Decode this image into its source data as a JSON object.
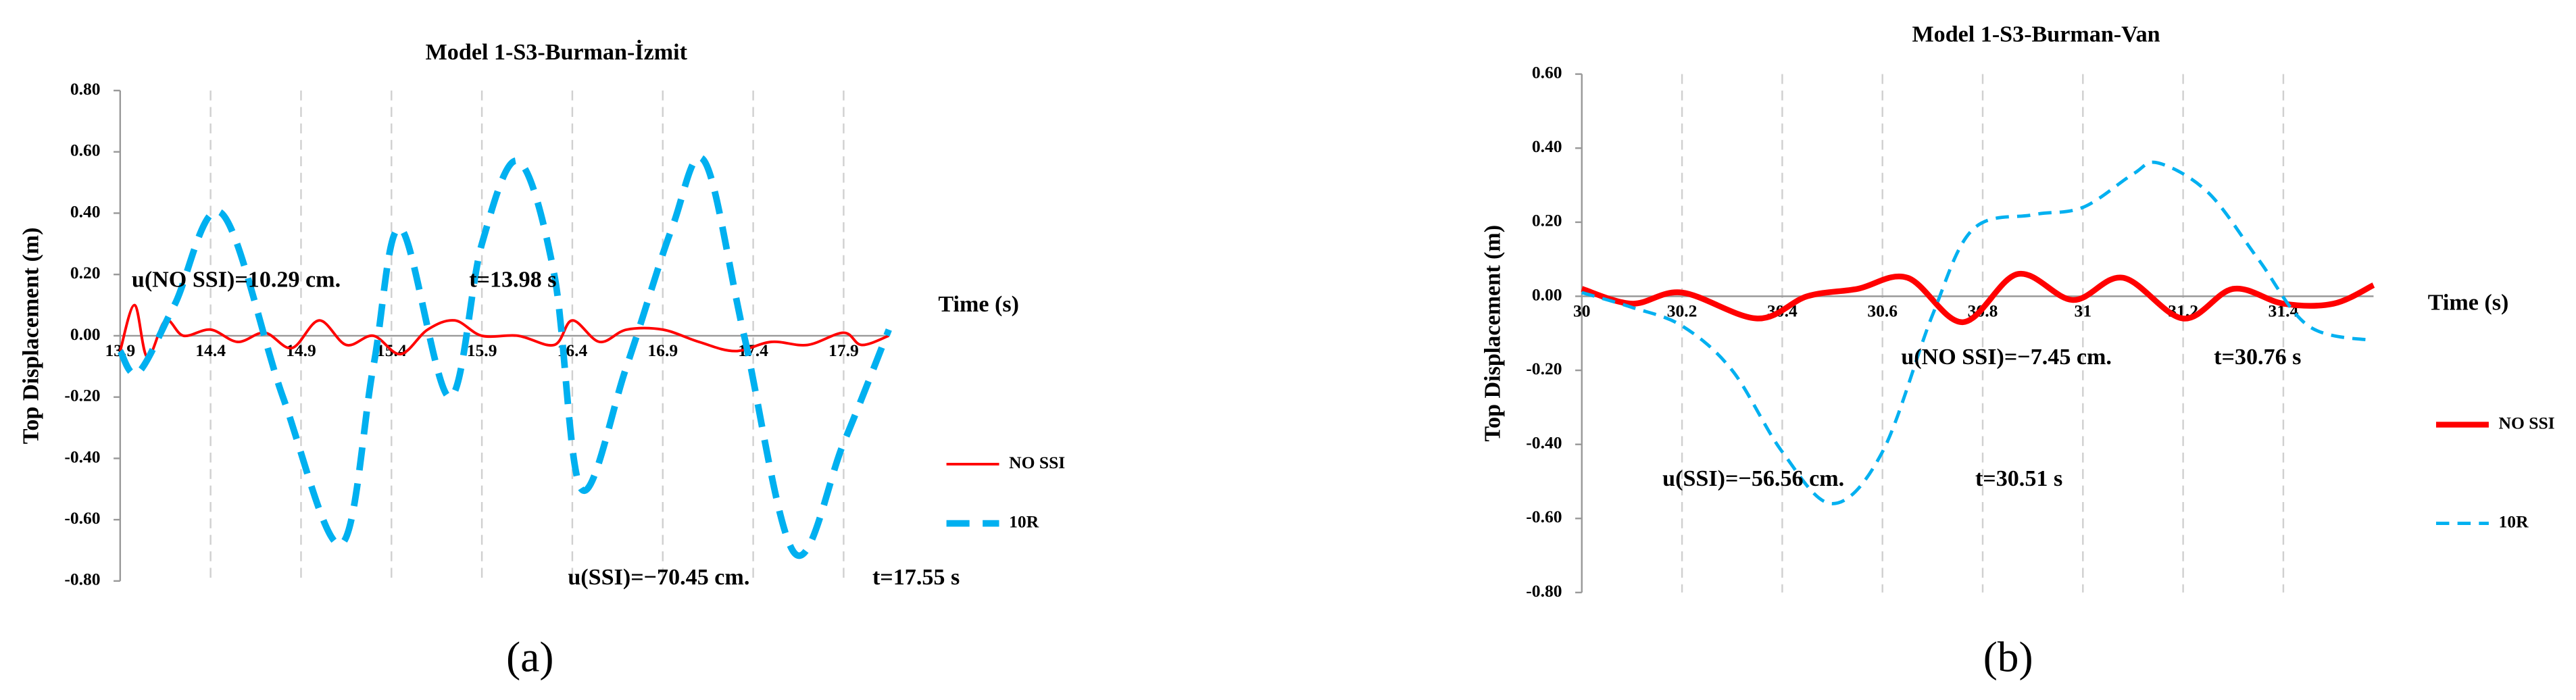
{
  "chart_data": [
    {
      "type": "line",
      "title": "Model 1-S3-Burman-İzmit",
      "y_label": "Top Displacement (m)",
      "x_label": "Time (s)",
      "panel": "(a)",
      "xlim": [
        13.9,
        18.15
      ],
      "xticks": [
        13.9,
        14.4,
        14.9,
        15.4,
        15.9,
        16.4,
        16.9,
        17.4,
        17.9
      ],
      "ylim": [
        -0.8,
        0.8
      ],
      "yticks": [
        {
          "value": -0.8,
          "label": "-0.80"
        },
        {
          "value": -0.6,
          "label": "-0.60"
        },
        {
          "value": -0.4,
          "label": "-0.40"
        },
        {
          "value": -0.2,
          "label": "-0.20"
        },
        {
          "value": 0,
          "label": "0.00"
        },
        {
          "value": 0.2,
          "label": "0.20"
        },
        {
          "value": 0.4,
          "label": "0.40"
        },
        {
          "value": 0.6,
          "label": "0.60"
        },
        {
          "value": 0.8,
          "label": "0.80"
        }
      ],
      "grid": "x",
      "annotations": [
        "u(NO SSI)=10.29 cm.",
        "t=13.98 s",
        "u(SSI)=−70.45 cm.",
        "t=17.55 s"
      ],
      "series": [
        {
          "name": "NO SSI",
          "color": "#ff0000",
          "dashed": false,
          "x": [
            13.9,
            13.98,
            14.05,
            14.15,
            14.25,
            14.4,
            14.55,
            14.7,
            14.85,
            15.0,
            15.15,
            15.3,
            15.45,
            15.6,
            15.75,
            15.9,
            16.1,
            16.3,
            16.4,
            16.55,
            16.7,
            16.9,
            17.1,
            17.3,
            17.5,
            17.7,
            17.9,
            18.0,
            18.15
          ],
          "values": [
            -0.05,
            0.1,
            -0.07,
            0.05,
            0.0,
            0.02,
            -0.02,
            0.01,
            -0.04,
            0.05,
            -0.03,
            0.0,
            -0.06,
            0.02,
            0.05,
            0.0,
            0.0,
            -0.03,
            0.05,
            -0.02,
            0.02,
            0.02,
            -0.02,
            -0.05,
            -0.02,
            -0.03,
            0.01,
            -0.03,
            0.0
          ]
        },
        {
          "name": "10R",
          "color": "#00b0f0",
          "dashed": true,
          "x": [
            13.9,
            14.0,
            14.2,
            14.46,
            14.8,
            15.12,
            15.3,
            15.45,
            15.72,
            15.9,
            16.1,
            16.3,
            16.45,
            16.7,
            16.95,
            17.13,
            17.35,
            17.63,
            17.9,
            18.15
          ],
          "values": [
            -0.05,
            -0.12,
            0.1,
            0.4,
            -0.2,
            -0.68,
            -0.1,
            0.35,
            -0.2,
            0.3,
            0.57,
            0.2,
            -0.5,
            -0.1,
            0.35,
            0.57,
            0.0,
            -0.71,
            -0.35,
            0.02
          ]
        }
      ]
    },
    {
      "type": "line",
      "title": "Model 1-S3-Burman-Van",
      "y_label": "Top Displacement (m)",
      "x_label": "Time (s)",
      "panel": "(b)",
      "xlim": [
        30,
        31.58
      ],
      "xticks": [
        30,
        30.2,
        30.4,
        30.6,
        30.8,
        31,
        31.2,
        31.4
      ],
      "ylim": [
        -0.8,
        0.6
      ],
      "yticks": [
        {
          "value": -0.8,
          "label": "-0.80"
        },
        {
          "value": -0.6,
          "label": "-0.60"
        },
        {
          "value": -0.4,
          "label": "-0.40"
        },
        {
          "value": -0.2,
          "label": "-0.20"
        },
        {
          "value": 0,
          "label": "0.00"
        },
        {
          "value": 0.2,
          "label": "0.20"
        },
        {
          "value": 0.4,
          "label": "0.40"
        },
        {
          "value": 0.6,
          "label": "0.60"
        }
      ],
      "grid": "x",
      "annotations": [
        "u(NO SSI)=−7.45 cm.",
        "t=30.76 s",
        "u(SSI)=−56.56 cm.",
        "t=30.51 s"
      ],
      "series": [
        {
          "name": "NO SSI",
          "color": "#ff0000",
          "dashed": false,
          "x": [
            30,
            30.1,
            30.2,
            30.35,
            30.45,
            30.55,
            30.65,
            30.76,
            30.87,
            30.98,
            31.08,
            31.2,
            31.3,
            31.4,
            31.5,
            31.58
          ],
          "values": [
            0.02,
            -0.02,
            0.01,
            -0.06,
            0.0,
            0.02,
            0.05,
            -0.07,
            0.06,
            -0.01,
            0.05,
            -0.06,
            0.02,
            -0.02,
            -0.02,
            0.03
          ]
        },
        {
          "name": "10R",
          "color": "#00b0f0",
          "dashed": true,
          "x": [
            30,
            30.1,
            30.2,
            30.3,
            30.4,
            30.5,
            30.6,
            30.7,
            30.78,
            30.9,
            31.0,
            31.1,
            31.15,
            31.25,
            31.35,
            31.45,
            31.58
          ],
          "values": [
            0.01,
            -0.03,
            -0.08,
            -0.2,
            -0.42,
            -0.56,
            -0.42,
            -0.05,
            0.18,
            0.22,
            0.24,
            0.33,
            0.36,
            0.28,
            0.1,
            -0.08,
            -0.12
          ]
        }
      ]
    }
  ]
}
